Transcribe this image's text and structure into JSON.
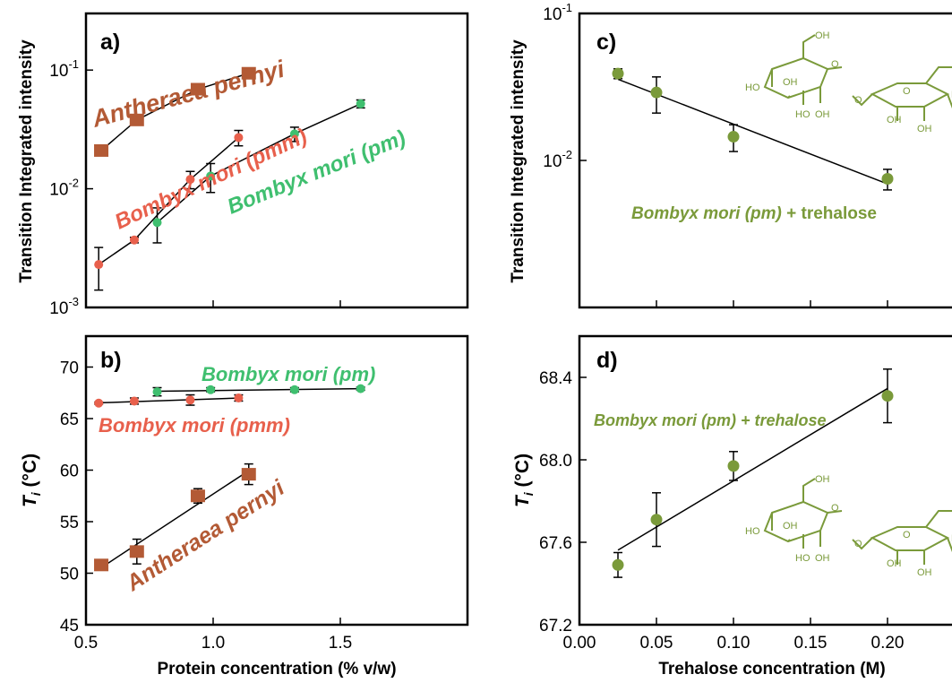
{
  "colors": {
    "antheraea": "#b35a35",
    "pmm": "#e8604c",
    "pm": "#3fbf6f",
    "trehalose": "#7a9a3a"
  },
  "chart_data": [
    {
      "panel": "a)",
      "type": "scatter",
      "xlim": [
        0.5,
        2.0
      ],
      "ylim": [
        0.001,
        0.3
      ],
      "yscale": "log",
      "ylabel": "Transition Integrated intensity",
      "ytick_labels": [
        {
          "base": "10",
          "exp": "-3",
          "v": 0.001
        },
        {
          "base": "10",
          "exp": "-2",
          "v": 0.01
        },
        {
          "base": "10",
          "exp": "-1",
          "v": 0.1
        }
      ],
      "series": [
        {
          "name": "Antheraea pernyi",
          "color_key": "antheraea",
          "marker": "square",
          "x": [
            0.56,
            0.7,
            0.94,
            1.14
          ],
          "y": [
            0.021,
            0.038,
            0.069,
            0.094
          ],
          "err": [
            0.002,
            0.003,
            0.006,
            0.007
          ]
        },
        {
          "name": "Bombyx mori (pmm)",
          "color_key": "pmm",
          "marker": "circle",
          "x": [
            0.55,
            0.69,
            0.91,
            1.1
          ],
          "y": [
            0.0023,
            0.0037,
            0.012,
            0.027
          ],
          "err": [
            0.0009,
            0.0002,
            0.002,
            0.004
          ]
        },
        {
          "name": "Bombyx mori (pm)",
          "color_key": "pm",
          "marker": "circle",
          "x": [
            0.78,
            0.99,
            1.32,
            1.58
          ],
          "y": [
            0.0052,
            0.0128,
            0.029,
            0.052
          ],
          "err": [
            0.0017,
            0.0035,
            0.004,
            0.004
          ]
        }
      ]
    },
    {
      "panel": "b)",
      "type": "scatter",
      "xlim": [
        0.5,
        2.0
      ],
      "ylim": [
        45,
        73
      ],
      "xlabel": "Protein concentration (% v/w)",
      "ylabel": "T_i (°C)",
      "xticks": [
        "0.5",
        "1.0",
        "1.5"
      ],
      "xtick_values": [
        0.5,
        1.0,
        1.5
      ],
      "yticks": [
        "45",
        "50",
        "55",
        "60",
        "65",
        "70"
      ],
      "ytick_values": [
        45,
        50,
        55,
        60,
        65,
        70
      ],
      "series": [
        {
          "name": "Bombyx mori (pm)",
          "color_key": "pm",
          "marker": "circle",
          "x": [
            0.78,
            0.99,
            1.32,
            1.58
          ],
          "y": [
            67.6,
            67.8,
            67.8,
            67.9
          ],
          "err": [
            0.4,
            0.2,
            0.2,
            0.15
          ]
        },
        {
          "name": "Bombyx mori (pmm)",
          "color_key": "pmm",
          "marker": "circle",
          "x": [
            0.55,
            0.69,
            0.91,
            1.1
          ],
          "y": [
            66.5,
            66.7,
            66.8,
            67.0
          ],
          "err": [
            0.1,
            0.3,
            0.5,
            0.3
          ]
        },
        {
          "name": "Antheraea pernyi",
          "color_key": "antheraea",
          "marker": "square",
          "x": [
            0.56,
            0.7,
            0.94,
            1.14
          ],
          "y": [
            50.8,
            52.1,
            57.5,
            59.6
          ],
          "err": [
            0.3,
            1.2,
            0.7,
            1.0
          ]
        }
      ]
    },
    {
      "panel": "c)",
      "type": "scatter",
      "xlim": [
        0,
        0.25
      ],
      "ylim": [
        0.001,
        0.1
      ],
      "yscale": "log",
      "ylabel": "Transition Integrated intensity",
      "ytick_labels": [
        {
          "base": "10",
          "exp": "-2",
          "v": 0.01
        },
        {
          "base": "10",
          "exp": "-1",
          "v": 0.1
        }
      ],
      "series": [
        {
          "name": "Bombyx mori (pm) + trehalose",
          "color_key": "trehalose",
          "marker": "circle",
          "x": [
            0.025,
            0.05,
            0.1,
            0.2
          ],
          "y": [
            0.039,
            0.029,
            0.0145,
            0.0075
          ],
          "err": [
            0.003,
            0.008,
            0.003,
            0.0012
          ]
        }
      ]
    },
    {
      "panel": "d)",
      "type": "scatter",
      "xlim": [
        0,
        0.25
      ],
      "ylim": [
        67.2,
        68.6
      ],
      "xlabel": "Trehalose concentration (M)",
      "ylabel": "T_i (°C)",
      "xticks": [
        "0.00",
        "0.05",
        "0.10",
        "0.15",
        "0.20"
      ],
      "xtick_values": [
        0,
        0.05,
        0.1,
        0.15,
        0.2
      ],
      "yticks": [
        "67.2",
        "67.6",
        "68.0",
        "68.4"
      ],
      "ytick_values": [
        67.2,
        67.6,
        68.0,
        68.4
      ],
      "series": [
        {
          "name": "Bombyx mori (pm) + trehalose",
          "color_key": "trehalose",
          "marker": "circle",
          "x": [
            0.025,
            0.05,
            0.1,
            0.2
          ],
          "y": [
            67.49,
            67.71,
            67.97,
            68.31
          ],
          "err": [
            0.06,
            0.13,
            0.07,
            0.13
          ]
        }
      ]
    }
  ],
  "annotations": {
    "a_ap": "Antheraea pernyi",
    "a_pmm": "Bombyx mori (pmm)",
    "a_pm": "Bombyx mori (pm)",
    "b_pm": "Bombyx mori (pm)",
    "b_pmm": "Bombyx mori (pmm)",
    "b_ap": "Antheraea pernyi",
    "c_label_italic": "Bombyx mori (pm)",
    "c_label_rest": " + trehalose",
    "d_label": "Bombyx mori (pm) + trehalose"
  },
  "molecule": {
    "oh": "OH",
    "ho": "HO",
    "o": "O"
  }
}
